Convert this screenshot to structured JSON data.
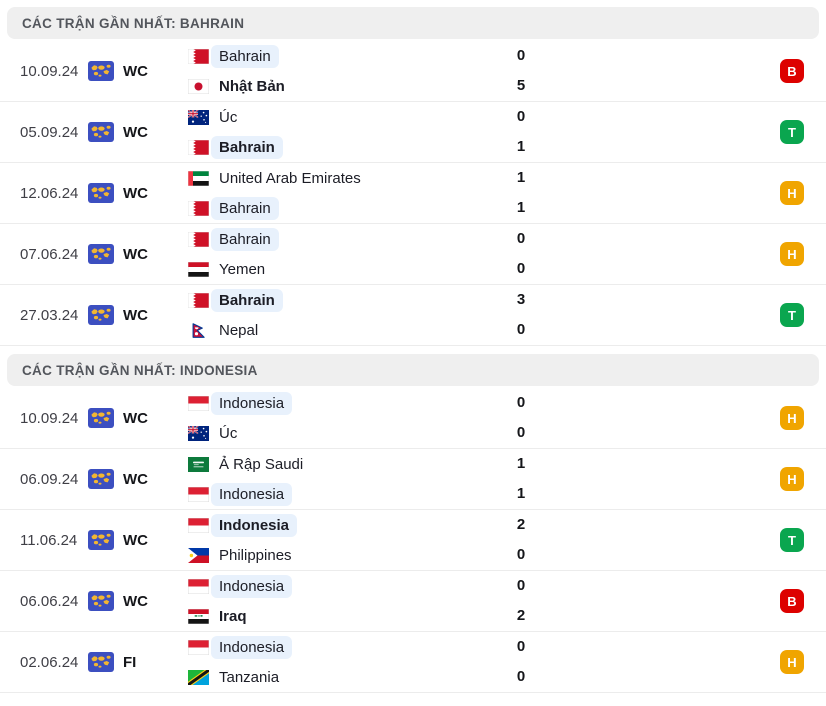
{
  "result_colors": {
    "T": "#0aa64f",
    "H": "#f0a500",
    "B": "#dd0100"
  },
  "result_legend": {
    "T": "win",
    "H": "draw",
    "B": "loss"
  },
  "competition_icon": "world-map-icon",
  "sections": [
    {
      "title": "CÁC TRẬN GẦN NHẤT: BAHRAIN",
      "matches": [
        {
          "date": "10.09.24",
          "competition": "WC",
          "home": {
            "name": "Bahrain",
            "flag": "bahrain",
            "highlight": true,
            "bold": false,
            "score": "0"
          },
          "away": {
            "name": "Nhật Bản",
            "flag": "japan",
            "highlight": false,
            "bold": true,
            "score": "5"
          },
          "result": "B"
        },
        {
          "date": "05.09.24",
          "competition": "WC",
          "home": {
            "name": "Úc",
            "flag": "australia",
            "highlight": false,
            "bold": false,
            "score": "0"
          },
          "away": {
            "name": "Bahrain",
            "flag": "bahrain",
            "highlight": true,
            "bold": true,
            "score": "1"
          },
          "result": "T"
        },
        {
          "date": "12.06.24",
          "competition": "WC",
          "home": {
            "name": "United Arab Emirates",
            "flag": "uae",
            "highlight": false,
            "bold": false,
            "score": "1"
          },
          "away": {
            "name": "Bahrain",
            "flag": "bahrain",
            "highlight": true,
            "bold": false,
            "score": "1"
          },
          "result": "H"
        },
        {
          "date": "07.06.24",
          "competition": "WC",
          "home": {
            "name": "Bahrain",
            "flag": "bahrain",
            "highlight": true,
            "bold": false,
            "score": "0"
          },
          "away": {
            "name": "Yemen",
            "flag": "yemen",
            "highlight": false,
            "bold": false,
            "score": "0"
          },
          "result": "H"
        },
        {
          "date": "27.03.24",
          "competition": "WC",
          "home": {
            "name": "Bahrain",
            "flag": "bahrain",
            "highlight": true,
            "bold": true,
            "score": "3"
          },
          "away": {
            "name": "Nepal",
            "flag": "nepal",
            "highlight": false,
            "bold": false,
            "score": "0"
          },
          "result": "T"
        }
      ]
    },
    {
      "title": "CÁC TRẬN GẦN NHẤT: INDONESIA",
      "matches": [
        {
          "date": "10.09.24",
          "competition": "WC",
          "home": {
            "name": "Indonesia",
            "flag": "indonesia",
            "highlight": true,
            "bold": false,
            "score": "0"
          },
          "away": {
            "name": "Úc",
            "flag": "australia",
            "highlight": false,
            "bold": false,
            "score": "0"
          },
          "result": "H"
        },
        {
          "date": "06.09.24",
          "competition": "WC",
          "home": {
            "name": "Ả Rập Saudi",
            "flag": "saudi",
            "highlight": false,
            "bold": false,
            "score": "1"
          },
          "away": {
            "name": "Indonesia",
            "flag": "indonesia",
            "highlight": true,
            "bold": false,
            "score": "1"
          },
          "result": "H"
        },
        {
          "date": "11.06.24",
          "competition": "WC",
          "home": {
            "name": "Indonesia",
            "flag": "indonesia",
            "highlight": true,
            "bold": true,
            "score": "2"
          },
          "away": {
            "name": "Philippines",
            "flag": "philippines",
            "highlight": false,
            "bold": false,
            "score": "0"
          },
          "result": "T"
        },
        {
          "date": "06.06.24",
          "competition": "WC",
          "home": {
            "name": "Indonesia",
            "flag": "indonesia",
            "highlight": true,
            "bold": false,
            "score": "0"
          },
          "away": {
            "name": "Iraq",
            "flag": "iraq",
            "highlight": false,
            "bold": true,
            "score": "2"
          },
          "result": "B"
        },
        {
          "date": "02.06.24",
          "competition": "FI",
          "home": {
            "name": "Indonesia",
            "flag": "indonesia",
            "highlight": true,
            "bold": false,
            "score": "0"
          },
          "away": {
            "name": "Tanzania",
            "flag": "tanzania",
            "highlight": false,
            "bold": false,
            "score": "0"
          },
          "result": "H"
        }
      ]
    }
  ]
}
